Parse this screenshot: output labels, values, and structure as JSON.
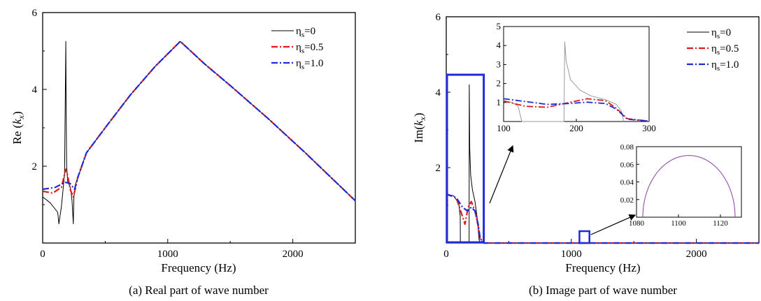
{
  "chart_data": [
    {
      "type": "line",
      "panel": "a",
      "caption": "(a) Real part of wave number",
      "xlabel": "Frequency (Hz)",
      "ylabel": "Re (k_x)",
      "xlim": [
        0,
        2500
      ],
      "ylim": [
        0,
        6
      ],
      "xticks": [
        "0",
        "1000",
        "2000"
      ],
      "yticks": [
        "2",
        "4",
        "6"
      ],
      "legend_position": "top-right",
      "series": [
        {
          "name": "ηs=0",
          "color": "#000000",
          "style": "solid",
          "x": [
            0,
            60,
            120,
            130,
            150,
            175,
            185,
            188,
            192,
            200,
            215,
            225,
            235,
            240,
            245,
            250,
            260,
            280,
            350,
            500,
            700,
            900,
            1100,
            1300,
            1500,
            1800,
            2100,
            2500
          ],
          "y": [
            1.2,
            1.05,
            0.8,
            0.5,
            0.95,
            1.8,
            5.25,
            3.5,
            2.0,
            1.6,
            1.5,
            1.4,
            1.1,
            0.8,
            0.5,
            1.2,
            1.5,
            1.7,
            2.35,
            3.0,
            3.85,
            4.6,
            5.25,
            4.65,
            4.1,
            3.25,
            2.35,
            1.1
          ]
        },
        {
          "name": "ηs=0.5",
          "color": "#e0191b",
          "style": "dashdot",
          "x": [
            0,
            80,
            150,
            185,
            200,
            220,
            245,
            260,
            280,
            350,
            500,
            700,
            900,
            1100,
            1300,
            1500,
            1800,
            2100,
            2500
          ],
          "y": [
            1.35,
            1.3,
            1.45,
            1.92,
            1.75,
            1.4,
            1.2,
            1.4,
            1.7,
            2.35,
            3.0,
            3.85,
            4.6,
            5.25,
            4.65,
            4.1,
            3.25,
            2.35,
            1.1
          ]
        },
        {
          "name": "ηs=1.0",
          "color": "#1f2bd6",
          "style": "dashdot",
          "x": [
            0,
            100,
            180,
            220,
            255,
            280,
            350,
            500,
            700,
            900,
            1100,
            1300,
            1500,
            1800,
            2100,
            2500
          ],
          "y": [
            1.4,
            1.45,
            1.58,
            1.55,
            1.4,
            1.7,
            2.35,
            3.0,
            3.85,
            4.6,
            5.25,
            4.65,
            4.1,
            3.25,
            2.35,
            1.1
          ]
        }
      ]
    },
    {
      "type": "line",
      "panel": "b",
      "caption": "(b) Image part of wave number",
      "xlabel": "Frequency (Hz)",
      "ylabel": "Im(k_x)",
      "xlim": [
        0,
        2500
      ],
      "ylim": [
        0,
        6
      ],
      "xticks": [
        "0",
        "1000",
        "2000"
      ],
      "yticks": [
        "2",
        "4",
        "6"
      ],
      "legend_position": "top-right",
      "series": [
        {
          "name": "ηs=0",
          "color": "#000000",
          "style": "solid",
          "x": [
            0,
            60,
            100,
            112,
            113,
            183,
            184,
            188,
            195,
            210,
            230,
            250,
            262,
            270,
            300,
            2500
          ],
          "y": [
            1.3,
            1.25,
            1.05,
            0.7,
            0,
            0,
            4.2,
            2.5,
            1.8,
            1.4,
            1.1,
            0.6,
            0.1,
            0,
            0,
            0
          ]
        },
        {
          "name": "ηs=0.5",
          "color": "#e0191b",
          "style": "dashdot",
          "x": [
            0,
            80,
            120,
            150,
            175,
            200,
            230,
            255,
            270,
            290,
            300,
            2500
          ],
          "y": [
            1.3,
            1.2,
            0.8,
            0.5,
            0.95,
            1.1,
            0.85,
            0.45,
            0.1,
            0.02,
            0,
            0
          ]
        },
        {
          "name": "ηs=1.0",
          "color": "#1f2bd6",
          "style": "dashdot",
          "x": [
            0,
            80,
            130,
            170,
            200,
            230,
            255,
            270,
            290,
            300,
            2500
          ],
          "y": [
            1.3,
            1.2,
            0.95,
            0.85,
            0.95,
            0.85,
            0.5,
            0.15,
            0.02,
            0,
            0
          ]
        }
      ],
      "insets": [
        {
          "name": "low-frequency-zoom",
          "xlim": [
            100,
            300
          ],
          "ylim": [
            0,
            5
          ],
          "xticks": [
            "100",
            "200",
            "300"
          ],
          "yticks": [
            "1",
            "2",
            "3",
            "4",
            "5"
          ],
          "series": [
            {
              "name": "ηs=0",
              "color": "#9a9a9a",
              "style": "solid",
              "x": [
                100,
                112,
                120,
                125,
                183,
                184,
                186,
                192,
                205,
                220,
                240,
                255,
                262,
                265
              ],
              "y": [
                1.1,
                1.0,
                0.8,
                0,
                0,
                4.2,
                3.2,
                2.2,
                1.65,
                1.35,
                1.15,
                0.9,
                0.55,
                0
              ]
            },
            {
              "name": "ηs=0.5",
              "color": "#e0191b",
              "style": "dashdot",
              "x": [
                100,
                130,
                160,
                190,
                215,
                240,
                255,
                270,
                300
              ],
              "y": [
                1.08,
                0.8,
                0.75,
                1.0,
                1.2,
                1.1,
                0.7,
                0.15,
                0.02
              ]
            },
            {
              "name": "ηs=1.0",
              "color": "#1f2bd6",
              "style": "dashdot",
              "x": [
                100,
                130,
                160,
                190,
                215,
                240,
                255,
                270,
                300
              ],
              "y": [
                1.2,
                1.05,
                0.9,
                0.95,
                1.02,
                0.95,
                0.65,
                0.12,
                0.02
              ]
            }
          ]
        },
        {
          "name": "peak-zoom",
          "xlim": [
            1080,
            1130
          ],
          "ylim": [
            0,
            0.08
          ],
          "xticks": [
            "1080",
            "1100",
            "1120"
          ],
          "yticks": [
            "0.02",
            "0.04",
            "0.06",
            "0.08"
          ],
          "series": [
            {
              "name": "all",
              "color": "#8a3fa0",
              "style": "solid",
              "shape": "semicircle",
              "center": 1105,
              "half_width": 22,
              "peak": 0.07
            }
          ]
        }
      ]
    }
  ],
  "legend": {
    "items": [
      {
        "label": "ηs=0",
        "color": "#000000",
        "style": "solid"
      },
      {
        "label": "ηs=0.5",
        "color": "#e0191b",
        "style": "dashdot"
      },
      {
        "label": "ηs=1.0",
        "color": "#1f2bd6",
        "style": "dashdot"
      }
    ]
  },
  "highlight_box_color": "#1f2bd6"
}
